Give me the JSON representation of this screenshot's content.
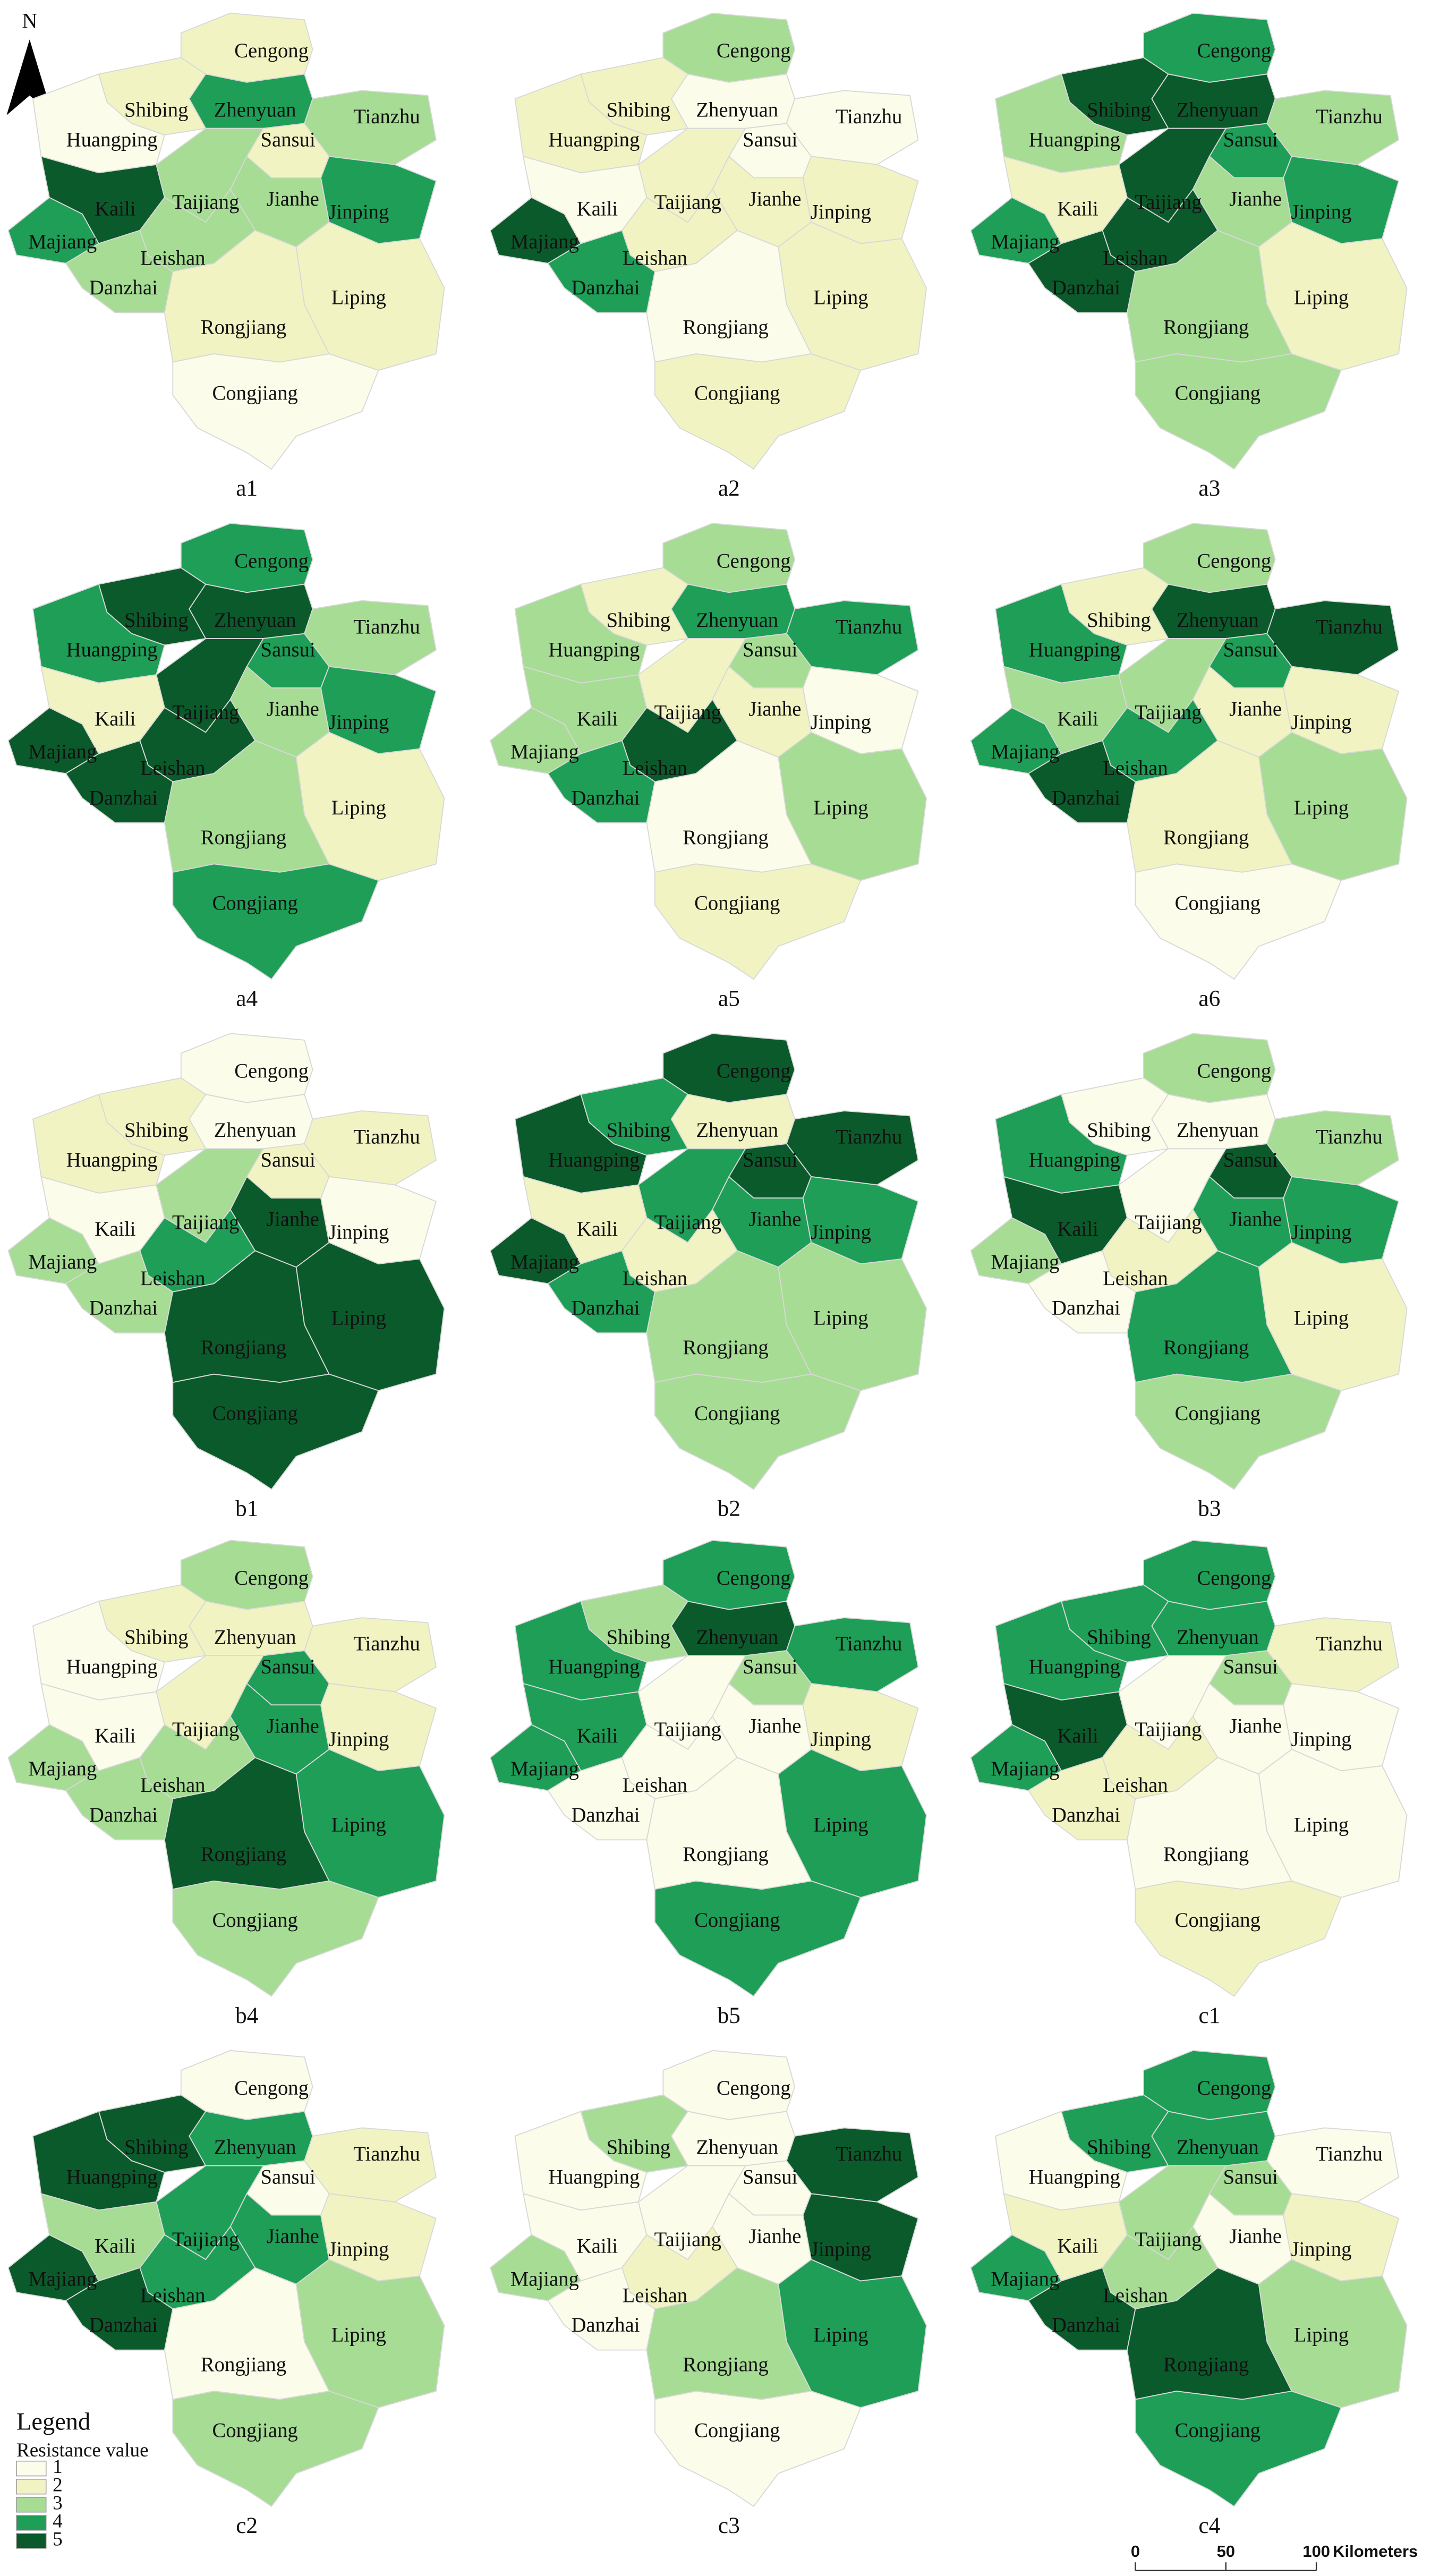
{
  "north": "N",
  "counties": [
    "Cengong",
    "Shibing",
    "Zhenyuan",
    "Tianzhu",
    "Huangping",
    "Sansui",
    "Kaili",
    "Taijiang",
    "Jianhe",
    "Jinping",
    "Majiang",
    "Leishan",
    "Danzhai",
    "Liping",
    "Rongjiang",
    "Congjiang"
  ],
  "panels": [
    {
      "label": "a1",
      "values": [
        2,
        2,
        4,
        3,
        1,
        2,
        5,
        3,
        3,
        4,
        4,
        3,
        3,
        2,
        2,
        1
      ]
    },
    {
      "label": "a2",
      "values": [
        3,
        2,
        1,
        1,
        2,
        1,
        1,
        2,
        2,
        2,
        5,
        2,
        4,
        2,
        1,
        2
      ]
    },
    {
      "label": "a3",
      "values": [
        4,
        5,
        5,
        3,
        3,
        4,
        2,
        5,
        3,
        4,
        4,
        5,
        5,
        2,
        3,
        3
      ]
    },
    {
      "label": "a4",
      "values": [
        4,
        5,
        5,
        3,
        4,
        4,
        2,
        5,
        3,
        4,
        5,
        5,
        5,
        2,
        3,
        4
      ]
    },
    {
      "label": "a5",
      "values": [
        3,
        2,
        4,
        4,
        3,
        3,
        3,
        2,
        2,
        1,
        3,
        5,
        4,
        3,
        1,
        2
      ]
    },
    {
      "label": "a6",
      "values": [
        3,
        2,
        5,
        5,
        4,
        4,
        3,
        3,
        2,
        2,
        4,
        4,
        5,
        3,
        2,
        1
      ]
    },
    {
      "label": "b1",
      "values": [
        1,
        2,
        1,
        2,
        2,
        2,
        1,
        3,
        5,
        1,
        3,
        4,
        3,
        5,
        5,
        5
      ]
    },
    {
      "label": "b2",
      "values": [
        5,
        4,
        2,
        5,
        5,
        5,
        2,
        4,
        4,
        4,
        5,
        2,
        4,
        3,
        3,
        3
      ]
    },
    {
      "label": "b3",
      "values": [
        3,
        1,
        1,
        3,
        4,
        5,
        5,
        1,
        4,
        4,
        3,
        2,
        1,
        2,
        4,
        3
      ]
    },
    {
      "label": "b4",
      "values": [
        3,
        2,
        2,
        2,
        1,
        4,
        1,
        2,
        4,
        2,
        3,
        3,
        3,
        4,
        5,
        3
      ]
    },
    {
      "label": "b5",
      "values": [
        4,
        3,
        5,
        4,
        4,
        3,
        4,
        1,
        1,
        2,
        4,
        1,
        1,
        4,
        1,
        4
      ]
    },
    {
      "label": "c1",
      "values": [
        4,
        4,
        4,
        2,
        4,
        3,
        5,
        1,
        1,
        1,
        4,
        2,
        2,
        1,
        1,
        2
      ]
    },
    {
      "label": "c2",
      "values": [
        1,
        5,
        4,
        2,
        5,
        1,
        3,
        4,
        4,
        2,
        5,
        4,
        5,
        3,
        1,
        3
      ]
    },
    {
      "label": "c3",
      "values": [
        1,
        3,
        1,
        5,
        1,
        1,
        1,
        1,
        1,
        5,
        3,
        2,
        1,
        4,
        3,
        1
      ]
    },
    {
      "label": "c4",
      "values": [
        4,
        4,
        4,
        1,
        1,
        3,
        2,
        3,
        1,
        2,
        4,
        3,
        5,
        3,
        5,
        4
      ]
    }
  ],
  "legend": {
    "title": "Legend",
    "subtitle": "Resistance value",
    "classes": [
      {
        "value": 1,
        "color": "#fbfce9"
      },
      {
        "value": 2,
        "color": "#f1f4c2"
      },
      {
        "value": 3,
        "color": "#a6dc94"
      },
      {
        "value": 4,
        "color": "#1e9e57"
      },
      {
        "value": 5,
        "color": "#0b5a2b"
      }
    ]
  },
  "scale_bar": {
    "ticks": [
      0,
      50,
      100
    ],
    "unit": "Kilometers"
  }
}
